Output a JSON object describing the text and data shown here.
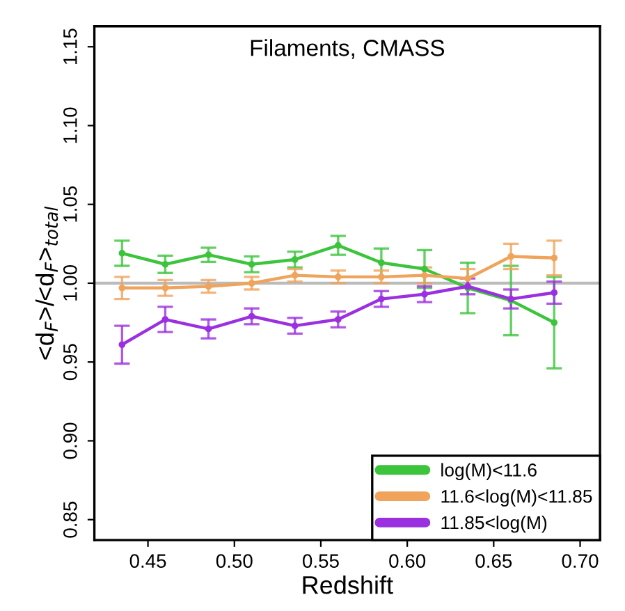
{
  "chart_data": {
    "type": "line",
    "title": "Filaments, CMASS",
    "xlabel": "Redshift",
    "ylabel": "<d$_{F}$>/<d$_{F}$>$_{total}$",
    "x": [
      0.435,
      0.46,
      0.485,
      0.51,
      0.535,
      0.56,
      0.585,
      0.61,
      0.635,
      0.66,
      0.685
    ],
    "series": [
      {
        "name": "log(M)<11.6",
        "color": "#3cc43c",
        "values": [
          1.019,
          1.012,
          1.018,
          1.012,
          1.015,
          1.024,
          1.013,
          1.009,
          0.997,
          0.989,
          0.975
        ],
        "errors": [
          0.008,
          0.0055,
          0.0045,
          0.005,
          0.005,
          0.006,
          0.009,
          0.012,
          0.016,
          0.022,
          0.029
        ]
      },
      {
        "name": "11.6<log(M)<11.85",
        "color": "#f0a35a",
        "values": [
          0.997,
          0.997,
          0.998,
          1.0,
          1.005,
          1.004,
          1.004,
          1.005,
          1.003,
          1.017,
          1.016
        ],
        "errors": [
          0.007,
          0.005,
          0.004,
          0.004,
          0.004,
          0.004,
          0.004,
          0.005,
          0.006,
          0.008,
          0.011
        ]
      },
      {
        "name": "11.85<log(M)",
        "color": "#9b30e0",
        "values": [
          0.961,
          0.977,
          0.971,
          0.979,
          0.973,
          0.977,
          0.99,
          0.993,
          0.998,
          0.99,
          0.994
        ],
        "errors": [
          0.012,
          0.008,
          0.006,
          0.005,
          0.005,
          0.005,
          0.005,
          0.005,
          0.005,
          0.006,
          0.007
        ]
      }
    ],
    "xlim": [
      0.419,
      0.7115
    ],
    "ylim": [
      0.837,
      1.163
    ],
    "xticks": [
      {
        "value": 0.45,
        "label": "0.45"
      },
      {
        "value": 0.5,
        "label": "0.50"
      },
      {
        "value": 0.55,
        "label": "0.55"
      },
      {
        "value": 0.6,
        "label": "0.60"
      },
      {
        "value": 0.65,
        "label": "0.65"
      },
      {
        "value": 0.7,
        "label": "0.70"
      }
    ],
    "yticks": [
      {
        "value": 0.85,
        "label": "0.85"
      },
      {
        "value": 0.9,
        "label": "0.90"
      },
      {
        "value": 0.95,
        "label": "0.95"
      },
      {
        "value": 1.0,
        "label": "1.00"
      },
      {
        "value": 1.05,
        "label": "1.05"
      },
      {
        "value": 1.1,
        "label": "1.10"
      },
      {
        "value": 1.15,
        "label": "1.15"
      }
    ],
    "ref_lines": [
      {
        "axis": "y",
        "value": 1.0,
        "color": "#bbbbbb"
      }
    ],
    "legend": "bottom right",
    "grid": false,
    "marker": "circle"
  }
}
